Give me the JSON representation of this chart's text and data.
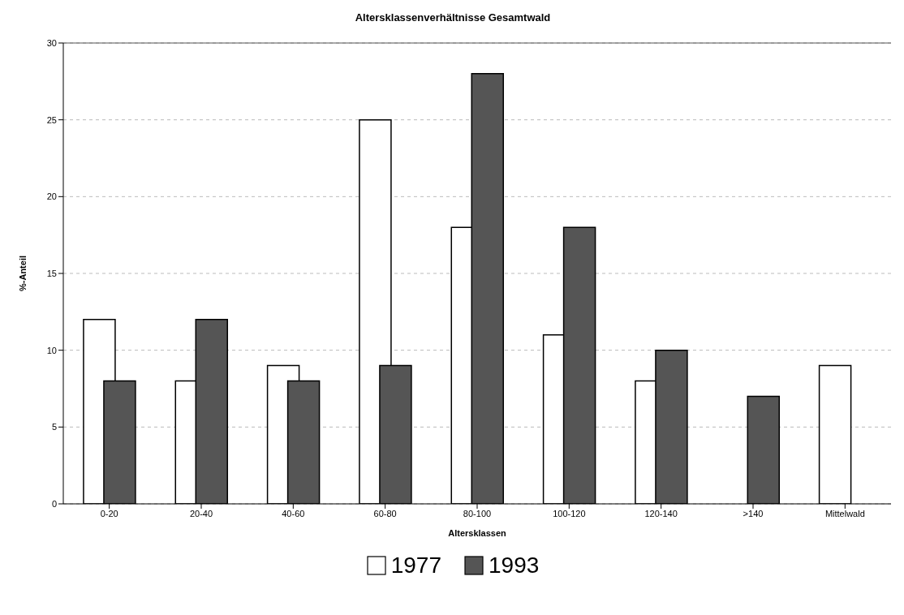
{
  "chart_data": {
    "type": "bar",
    "title": "Altersklassenverhältnisse Gesamtwald",
    "xlabel": "Altersklassen",
    "ylabel": "%-Anteil",
    "categories": [
      "0-20",
      "20-40",
      "40-60",
      "60-80",
      "80-100",
      "100-120",
      "120-140",
      ">140",
      "Mittelwald"
    ],
    "series": [
      {
        "name": "1977",
        "color": "#ffffff",
        "values": [
          12,
          8,
          9,
          25,
          18,
          11,
          8,
          null,
          9
        ]
      },
      {
        "name": "1993",
        "color": "#555555",
        "values": [
          8,
          12,
          8,
          9,
          28,
          18,
          10,
          7,
          null
        ]
      }
    ],
    "ylim": [
      0,
      30
    ],
    "yticks": [
      0,
      5,
      10,
      15,
      20,
      25,
      30
    ],
    "grid": "y",
    "legend": "bottom"
  }
}
